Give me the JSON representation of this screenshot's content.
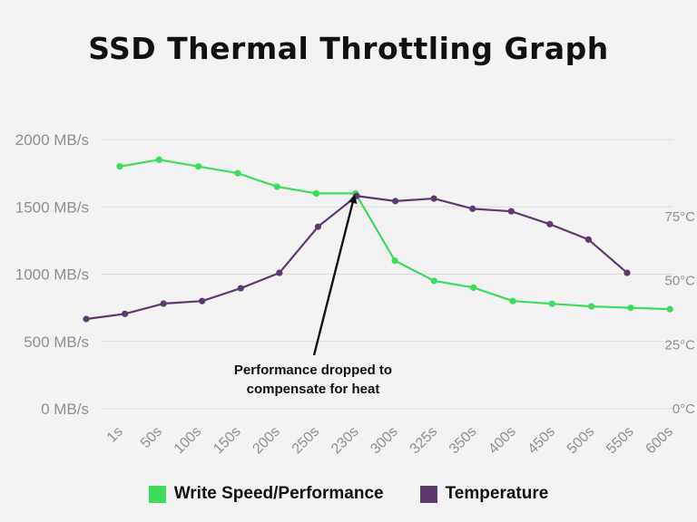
{
  "chart_data": {
    "type": "line",
    "title": "SSD Thermal Throttling Graph",
    "categories": [
      "1s",
      "50s",
      "100s",
      "150s",
      "200s",
      "250s",
      "230s",
      "300s",
      "325s",
      "350s",
      "400s",
      "450s",
      "500s",
      "550s",
      "600s"
    ],
    "series": [
      {
        "name": "Write Speed/Performance",
        "axis": "left",
        "color": "#3ddc5b",
        "values": [
          1800,
          1850,
          1800,
          1750,
          1650,
          1600,
          1600,
          1100,
          950,
          900,
          800,
          780,
          760,
          750,
          740
        ]
      },
      {
        "name": "Temperature",
        "axis": "right",
        "color": "#5e3a6e",
        "x_start": "1s",
        "values": [
          35,
          37,
          41,
          42,
          47,
          53,
          71,
          83,
          81,
          82,
          78,
          77,
          72,
          66,
          53
        ]
      }
    ],
    "y_left": {
      "ticks": [
        0,
        500,
        1000,
        1500,
        2000
      ],
      "tick_labels": [
        "0 MB/s",
        "500 MB/s",
        "1000 MB/s",
        "1500 MB/s",
        "2000 MB/s"
      ],
      "range": [
        0,
        2000
      ]
    },
    "y_right": {
      "ticks": [
        0,
        25,
        50,
        75
      ],
      "tick_labels": [
        "0°C",
        "25°C",
        "50°C",
        "75°C"
      ],
      "range": [
        0,
        105
      ]
    },
    "grid": true,
    "legend_position": "bottom",
    "annotation": {
      "lines": [
        "Performance dropped to",
        "compensate for heat"
      ],
      "points_to": "230s"
    }
  }
}
